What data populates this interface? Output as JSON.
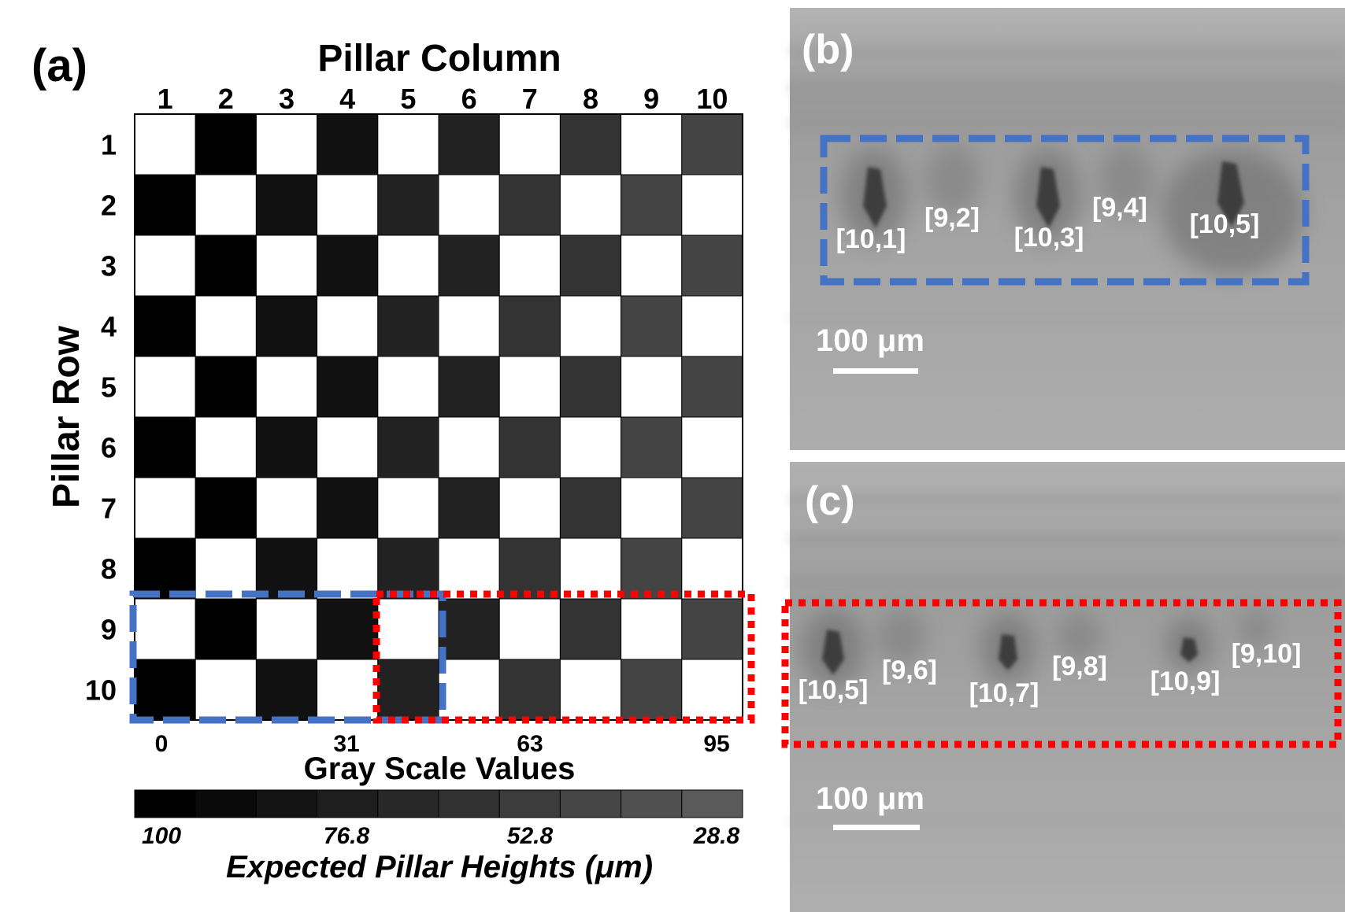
{
  "panel_a": {
    "label": "(a)",
    "column_title": "Pillar Column",
    "row_title": "Pillar Row",
    "columns": [
      "1",
      "2",
      "3",
      "4",
      "5",
      "6",
      "7",
      "8",
      "9",
      "10"
    ],
    "rows": [
      "1",
      "2",
      "3",
      "4",
      "5",
      "6",
      "7",
      "8",
      "9",
      "10"
    ],
    "dark_gray_by_column": [
      0,
      0,
      17,
      17,
      34,
      34,
      51,
      51,
      68,
      68
    ],
    "blue_dashed_box": "rows 9-10, columns 1-5",
    "red_dotted_box": "rows 9-10, columns 5-10",
    "scale_title": "Gray Scale Values",
    "scale_ticks": [
      "0",
      "31",
      "63",
      "95"
    ],
    "scale_swatch_grays": [
      0,
      10,
      20,
      30,
      40,
      50,
      60,
      70,
      80,
      90
    ],
    "height_ticks": [
      "100",
      "76.8",
      "52.8",
      "28.8"
    ],
    "height_title": "Expected Pillar Heights  (μm)"
  },
  "panel_b": {
    "label": "(b)",
    "scale_bar": "100 μm",
    "pillar_labels": [
      "[10,1]",
      "[9,2]",
      "[10,3]",
      "[9,4]",
      "[10,5]"
    ]
  },
  "panel_c": {
    "label": "(c)",
    "scale_bar": "100 μm",
    "pillar_labels": [
      "[10,5]",
      "[9,6]",
      "[10,7]",
      "[9,8]",
      "[10,9]",
      "[9,10]"
    ]
  },
  "colors": {
    "blue_box": "#4472c4",
    "red_box": "#ff0000",
    "micrograph_bg": "#a9a9a9",
    "micrograph_text": "#ffffff"
  }
}
